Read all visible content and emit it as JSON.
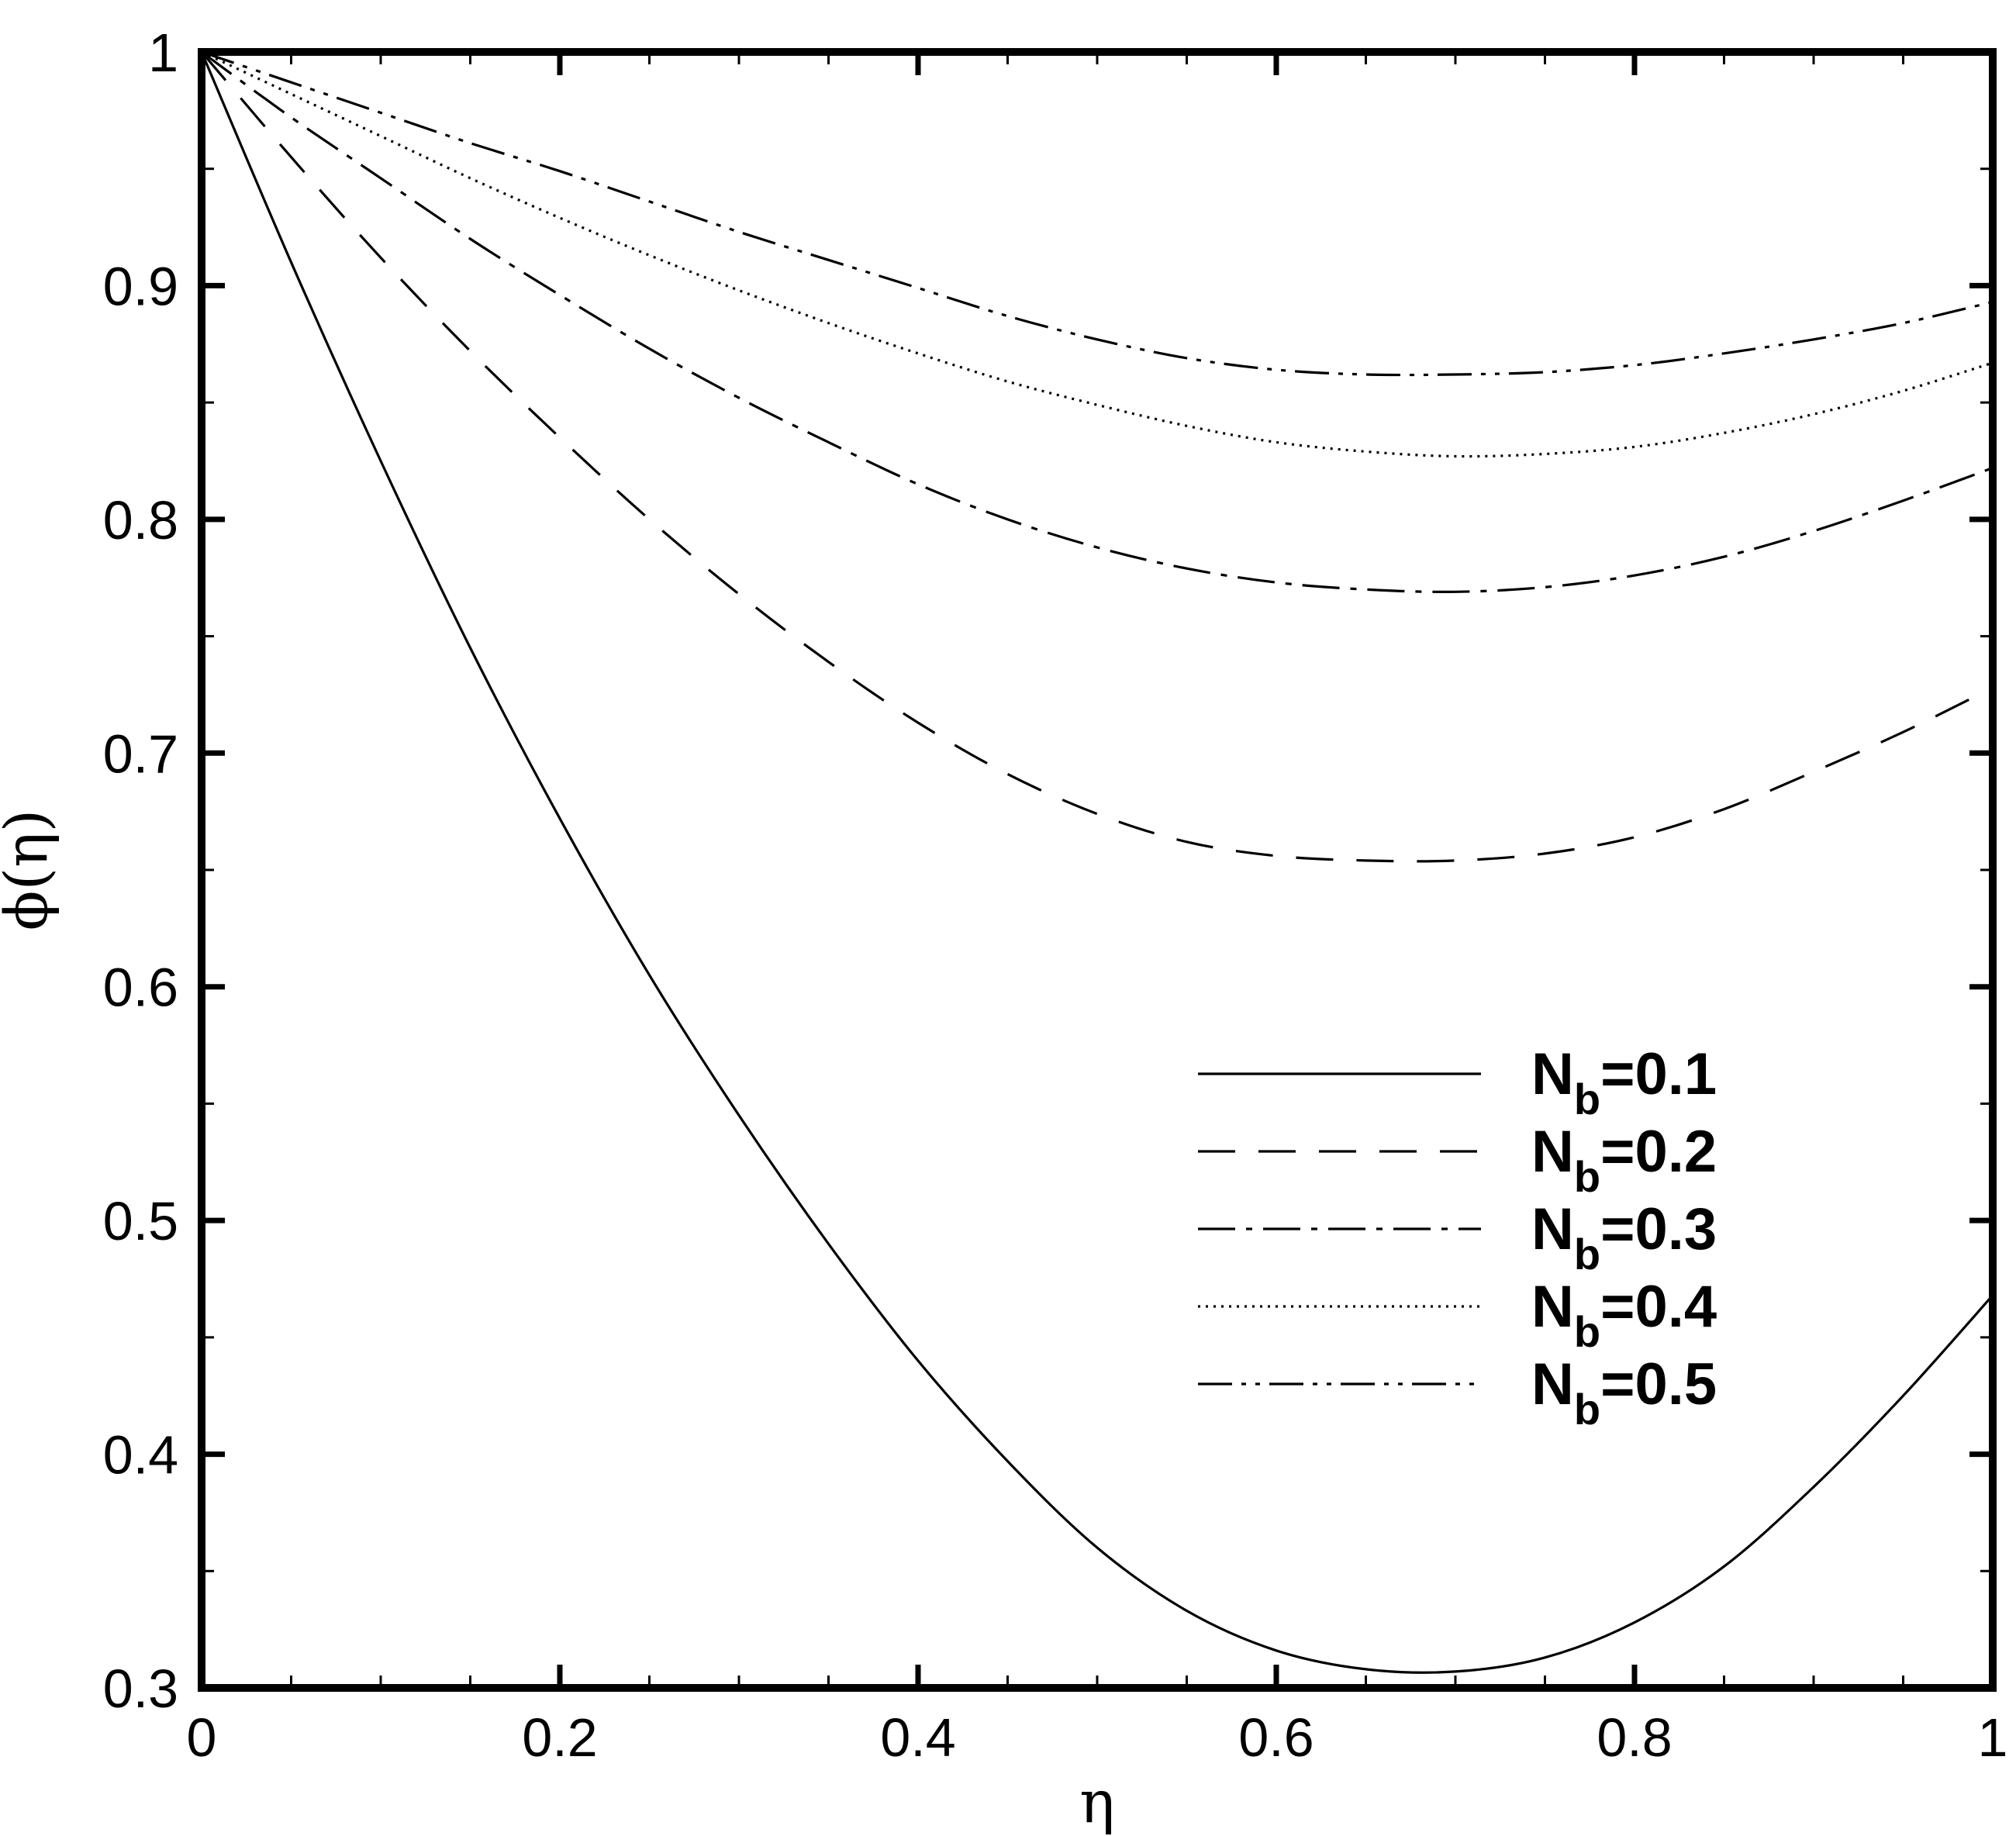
{
  "chart_data": {
    "type": "line",
    "title": "",
    "xlabel": "η",
    "ylabel": "ϕ(η)",
    "xlim": [
      0,
      1
    ],
    "ylim": [
      0.3,
      1
    ],
    "grid": false,
    "legend_position": "lower-right",
    "x_ticks": [
      {
        "value": 0,
        "label": "0"
      },
      {
        "value": 0.2,
        "label": "0.2"
      },
      {
        "value": 0.4,
        "label": "0.4"
      },
      {
        "value": 0.6,
        "label": "0.6"
      },
      {
        "value": 0.8,
        "label": "0.8"
      },
      {
        "value": 1,
        "label": "1"
      }
    ],
    "y_ticks": [
      {
        "value": 0.3,
        "label": "0.3"
      },
      {
        "value": 0.4,
        "label": "0.4"
      },
      {
        "value": 0.5,
        "label": "0.5"
      },
      {
        "value": 0.6,
        "label": "0.6"
      },
      {
        "value": 0.7,
        "label": "0.7"
      },
      {
        "value": 0.8,
        "label": "0.8"
      },
      {
        "value": 0.9,
        "label": "0.9"
      },
      {
        "value": 1,
        "label": "1"
      }
    ],
    "series": [
      {
        "name": "Nb=0.1",
        "legend_main": "N",
        "legend_sub": "b",
        "legend_value": "=0.1",
        "dash": "",
        "x": [
          0,
          0.05,
          0.1,
          0.15,
          0.2,
          0.25,
          0.3,
          0.35,
          0.4,
          0.45,
          0.5,
          0.55,
          0.6,
          0.65,
          0.7,
          0.75,
          0.8,
          0.85,
          0.9,
          0.95,
          1
        ],
        "y": [
          1.0,
          0.91,
          0.825,
          0.745,
          0.672,
          0.605,
          0.545,
          0.49,
          0.44,
          0.397,
          0.36,
          0.333,
          0.316,
          0.308,
          0.307,
          0.313,
          0.328,
          0.352,
          0.386,
          0.425,
          0.468
        ]
      },
      {
        "name": "Nb=0.2",
        "legend_main": "N",
        "legend_sub": "b",
        "legend_value": "=0.2",
        "dash": "48,30",
        "x": [
          0,
          0.05,
          0.1,
          0.15,
          0.2,
          0.25,
          0.3,
          0.35,
          0.4,
          0.45,
          0.5,
          0.55,
          0.6,
          0.65,
          0.7,
          0.75,
          0.8,
          0.85,
          0.9,
          0.95,
          1
        ],
        "y": [
          1.0,
          0.955,
          0.912,
          0.872,
          0.835,
          0.8,
          0.768,
          0.739,
          0.713,
          0.691,
          0.674,
          0.662,
          0.656,
          0.654,
          0.654,
          0.657,
          0.664,
          0.676,
          0.692,
          0.709,
          0.728
        ]
      },
      {
        "name": "Nb=0.3",
        "legend_main": "N",
        "legend_sub": "b",
        "legend_value": "=0.3",
        "dash": "48,14,8,14",
        "x": [
          0,
          0.05,
          0.1,
          0.15,
          0.2,
          0.25,
          0.3,
          0.35,
          0.4,
          0.45,
          0.5,
          0.55,
          0.6,
          0.65,
          0.7,
          0.75,
          0.8,
          0.85,
          0.9,
          0.95,
          1
        ],
        "y": [
          1.0,
          0.972,
          0.946,
          0.92,
          0.896,
          0.873,
          0.852,
          0.833,
          0.815,
          0.8,
          0.788,
          0.779,
          0.773,
          0.77,
          0.769,
          0.771,
          0.776,
          0.784,
          0.795,
          0.808,
          0.822
        ]
      },
      {
        "name": "Nb=0.4",
        "legend_main": "N",
        "legend_sub": "b",
        "legend_value": "=0.4",
        "dash": "3,7",
        "x": [
          0,
          0.05,
          0.1,
          0.15,
          0.2,
          0.25,
          0.3,
          0.35,
          0.4,
          0.45,
          0.5,
          0.55,
          0.6,
          0.65,
          0.7,
          0.75,
          0.8,
          0.85,
          0.9,
          0.95,
          1
        ],
        "y": [
          1.0,
          0.982,
          0.964,
          0.946,
          0.929,
          0.913,
          0.898,
          0.884,
          0.871,
          0.859,
          0.849,
          0.84,
          0.833,
          0.829,
          0.827,
          0.828,
          0.831,
          0.837,
          0.845,
          0.855,
          0.867
        ]
      },
      {
        "name": "Nb=0.5",
        "legend_main": "N",
        "legend_sub": "b",
        "legend_value": "=0.5",
        "dash": "44,12,6,12,6,12",
        "x": [
          0,
          0.05,
          0.1,
          0.15,
          0.2,
          0.25,
          0.3,
          0.35,
          0.4,
          0.45,
          0.5,
          0.55,
          0.6,
          0.65,
          0.7,
          0.75,
          0.8,
          0.85,
          0.9,
          0.95,
          1
        ],
        "y": [
          1.0,
          0.987,
          0.974,
          0.961,
          0.949,
          0.936,
          0.923,
          0.911,
          0.899,
          0.887,
          0.877,
          0.869,
          0.864,
          0.862,
          0.862,
          0.863,
          0.866,
          0.871,
          0.877,
          0.884,
          0.893
        ]
      }
    ]
  }
}
